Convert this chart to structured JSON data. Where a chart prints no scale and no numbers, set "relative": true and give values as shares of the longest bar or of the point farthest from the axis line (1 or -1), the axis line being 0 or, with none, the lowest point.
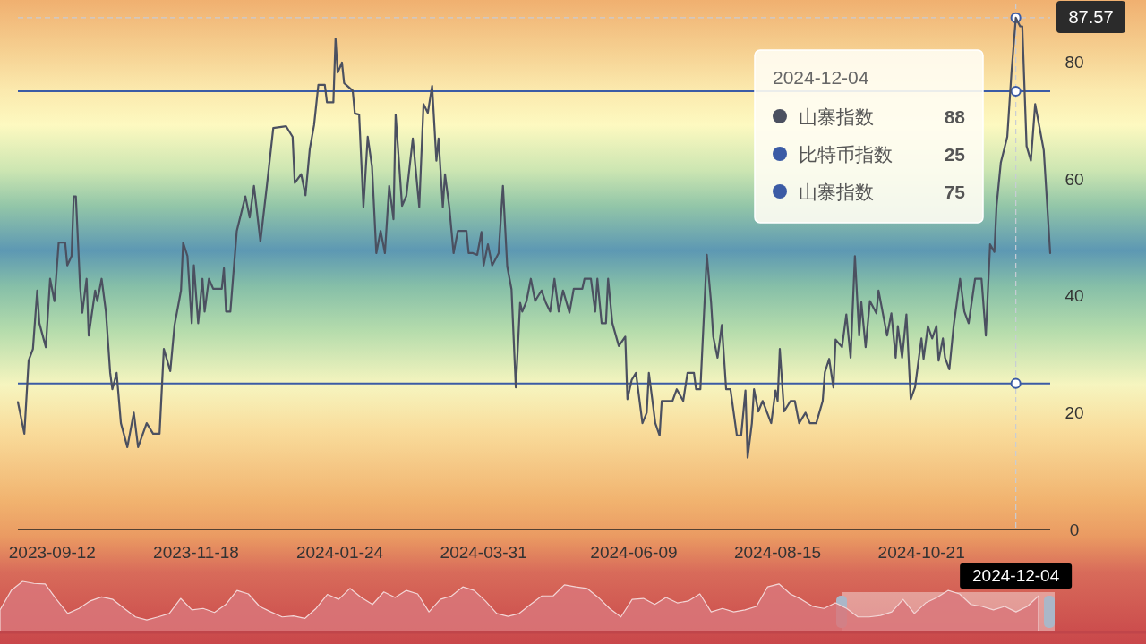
{
  "chart_data": [
    {
      "type": "line",
      "legend": "top right",
      "legend_title": "2024-12-04",
      "xlim": [
        "2023-08-27",
        "2024-12-20"
      ],
      "ylim": [
        0,
        90
      ],
      "yticks": [
        0,
        20,
        40,
        60,
        80
      ],
      "xticks": [
        "2023-09-12",
        "2023-11-18",
        "2024-01-24",
        "2024-03-31",
        "2024-06-09",
        "2024-08-15",
        "2024-10-21"
      ],
      "ref_lines": [
        {
          "axis": "y",
          "value": 25,
          "label": "比特币指数",
          "color": "#3b5ba5",
          "line_style": "solid"
        },
        {
          "axis": "y",
          "value": 75,
          "label": "山寨指数",
          "color": "#3b5ba5",
          "line_style": "solid"
        },
        {
          "axis": "y",
          "value": 87.57,
          "label": "87.57",
          "color": "#c8ccd6",
          "line_style": "dashed"
        },
        {
          "axis": "x",
          "value": "2024-12-04",
          "label": "2024-12-04",
          "color": "#c8ccd6",
          "line_style": "dashed"
        }
      ],
      "annotations": [
        "88",
        "25",
        "75"
      ],
      "x": [
        "2023-08-27",
        "2023-08-30",
        "2023-09-01",
        "2023-09-03",
        "2023-09-05",
        "2023-09-06",
        "2023-09-09",
        "2023-09-11",
        "2023-09-13",
        "2023-09-15",
        "2023-09-18",
        "2023-09-19",
        "2023-09-21",
        "2023-09-22",
        "2023-09-23",
        "2023-09-25",
        "2023-09-26",
        "2023-09-28",
        "2023-09-29",
        "2023-10-02",
        "2023-10-03",
        "2023-10-05",
        "2023-10-07",
        "2023-10-09",
        "2023-10-10",
        "2023-10-12",
        "2023-10-14",
        "2023-10-17",
        "2023-10-20",
        "2023-10-22",
        "2023-10-26",
        "2023-10-29",
        "2023-11-01",
        "2023-11-03",
        "2023-11-06",
        "2023-11-08",
        "2023-11-11",
        "2023-11-12",
        "2023-11-14",
        "2023-11-16",
        "2023-11-17",
        "2023-11-19",
        "2023-11-21",
        "2023-11-22",
        "2023-11-24",
        "2023-11-26",
        "2023-11-30",
        "2023-12-01",
        "2023-12-02",
        "2023-12-04",
        "2023-12-07",
        "2023-12-11",
        "2023-12-13",
        "2023-12-15",
        "2023-12-18",
        "2023-12-21",
        "2023-12-24",
        "2023-12-30",
        "2024-01-02",
        "2024-01-03",
        "2024-01-06",
        "2024-01-08",
        "2024-01-10",
        "2024-01-12",
        "2024-01-14",
        "2024-01-17",
        "2024-01-18",
        "2024-01-21",
        "2024-01-22",
        "2024-01-23",
        "2024-01-25",
        "2024-01-26",
        "2024-01-30",
        "2024-01-31",
        "2024-02-02",
        "2024-02-04",
        "2024-02-06",
        "2024-02-08",
        "2024-02-10",
        "2024-02-12",
        "2024-02-14",
        "2024-02-16",
        "2024-02-18",
        "2024-02-19",
        "2024-02-22",
        "2024-02-24",
        "2024-02-27",
        "2024-03-01",
        "2024-03-03",
        "2024-03-05",
        "2024-03-07",
        "2024-03-09",
        "2024-03-10",
        "2024-03-12",
        "2024-03-13",
        "2024-03-15",
        "2024-03-17",
        "2024-03-19",
        "2024-03-23",
        "2024-03-24",
        "2024-03-26",
        "2024-03-28",
        "2024-03-30",
        "2024-03-31",
        "2024-04-02",
        "2024-04-04",
        "2024-04-07",
        "2024-04-09",
        "2024-04-11",
        "2024-04-13",
        "2024-04-15",
        "2024-04-17",
        "2024-04-18",
        "2024-04-20",
        "2024-04-22",
        "2024-04-24",
        "2024-04-27",
        "2024-04-29",
        "2024-05-01",
        "2024-05-03",
        "2024-05-05",
        "2024-05-07",
        "2024-05-10",
        "2024-05-12",
        "2024-05-16",
        "2024-05-17",
        "2024-05-20",
        "2024-05-22",
        "2024-05-23",
        "2024-05-25",
        "2024-05-27",
        "2024-05-28",
        "2024-05-30",
        "2024-06-02",
        "2024-06-05",
        "2024-06-06",
        "2024-06-08",
        "2024-06-10",
        "2024-06-13",
        "2024-06-15",
        "2024-06-16",
        "2024-06-19",
        "2024-06-21",
        "2024-06-22",
        "2024-06-25",
        "2024-06-27",
        "2024-06-29",
        "2024-07-02",
        "2024-07-04",
        "2024-07-07",
        "2024-07-08",
        "2024-07-10",
        "2024-07-13",
        "2024-07-15",
        "2024-07-16",
        "2024-07-18",
        "2024-07-20",
        "2024-07-22",
        "2024-07-24",
        "2024-07-27",
        "2024-07-29",
        "2024-07-31",
        "2024-08-01",
        "2024-08-03",
        "2024-08-04",
        "2024-08-06",
        "2024-08-08",
        "2024-08-12",
        "2024-08-14",
        "2024-08-15",
        "2024-08-16",
        "2024-08-18",
        "2024-08-21",
        "2024-08-23",
        "2024-08-25",
        "2024-08-28",
        "2024-08-30",
        "2024-09-02",
        "2024-09-05",
        "2024-09-06",
        "2024-09-08",
        "2024-09-10",
        "2024-09-11",
        "2024-09-14",
        "2024-09-16",
        "2024-09-18",
        "2024-09-20",
        "2024-09-22",
        "2024-09-23",
        "2024-09-25",
        "2024-09-27",
        "2024-09-30",
        "2024-10-01",
        "2024-10-05",
        "2024-10-07",
        "2024-10-09",
        "2024-10-10",
        "2024-10-12",
        "2024-10-14",
        "2024-10-16",
        "2024-10-18",
        "2024-10-21",
        "2024-10-22",
        "2024-10-24",
        "2024-10-26",
        "2024-10-28",
        "2024-10-29",
        "2024-10-31",
        "2024-11-01",
        "2024-11-03",
        "2024-11-05",
        "2024-11-08",
        "2024-11-10",
        "2024-11-12",
        "2024-11-15",
        "2024-11-18",
        "2024-11-20",
        "2024-11-22",
        "2024-11-24",
        "2024-11-25",
        "2024-11-27",
        "2024-11-30",
        "2024-12-02",
        "2024-12-04",
        "2024-12-06",
        "2024-12-07",
        "2024-12-09",
        "2024-12-11",
        "2024-12-13",
        "2024-12-17",
        "2024-12-20"
      ],
      "series": [
        {
          "type": "scatter",
          "marker": "circle",
          "color": "#3b5ba5",
          "x": [
            "2024-12-04",
            "2024-12-04",
            "2024-12-04"
          ],
          "values": [
            87.57,
            75,
            25
          ]
        },
        {
          "name": "山寨指数",
          "color": "#4b5060",
          "values": [
            21.8,
            16.4,
            28.9,
            30.9,
            40.9,
            35.3,
            31.2,
            42.9,
            39.1,
            49.1,
            49.1,
            45.2,
            46.8,
            57.0,
            57.0,
            41.4,
            37.1,
            42.9,
            33.2,
            40.9,
            39.1,
            42.9,
            37.3,
            26.8,
            24.0,
            26.8,
            18.2,
            14.1,
            20.0,
            14.1,
            18.2,
            16.4,
            16.4,
            30.9,
            27.1,
            35.0,
            40.9,
            49.1,
            46.8,
            35.3,
            45.2,
            35.3,
            42.9,
            37.3,
            42.9,
            41.2,
            41.2,
            44.7,
            37.3,
            37.3,
            51.1,
            57.0,
            53.4,
            58.8,
            49.3,
            58.8,
            68.7,
            69.0,
            67.2,
            59.3,
            60.8,
            57.2,
            65.1,
            69.2,
            76.1,
            76.1,
            73.1,
            73.1,
            84.0,
            78.2,
            79.9,
            76.4,
            75.1,
            71.2,
            71.0,
            55.2,
            67.2,
            62.1,
            47.3,
            51.1,
            47.3,
            58.8,
            53.1,
            71.0,
            55.4,
            57.1,
            66.9,
            55.2,
            72.8,
            71.3,
            75.9,
            63.1,
            66.9,
            55.2,
            60.8,
            55.2,
            47.3,
            51.1,
            51.1,
            47.3,
            47.3,
            47.0,
            50.9,
            45.2,
            48.8,
            45.2,
            47.3,
            58.8,
            45.0,
            41.1,
            24.3,
            38.8,
            37.3,
            39.1,
            42.9,
            39.1,
            40.9,
            38.8,
            37.3,
            42.9,
            37.3,
            40.9,
            37.1,
            41.2,
            41.2,
            42.9,
            42.9,
            37.3,
            42.9,
            35.3,
            35.3,
            42.9,
            35.3,
            31.4,
            33.0,
            22.3,
            25.6,
            26.8,
            18.2,
            20.0,
            26.8,
            18.2,
            16.1,
            22.0,
            22.0,
            22.0,
            24.0,
            22.0,
            26.8,
            26.8,
            24.0,
            24.0,
            47.0,
            38.8,
            33.0,
            29.4,
            35.0,
            24.0,
            24.0,
            16.1,
            16.1,
            23.8,
            12.3,
            18.2,
            24.0,
            20.2,
            22.0,
            18.2,
            23.8,
            22.0,
            30.9,
            20.2,
            22.0,
            22.0,
            18.2,
            20.0,
            18.2,
            18.2,
            22.0,
            26.9,
            29.2,
            24.3,
            32.5,
            31.2,
            36.8,
            29.4,
            46.8,
            33.2,
            38.9,
            31.2,
            39.1,
            37.0,
            40.9,
            33.2,
            37.0,
            29.4,
            34.8,
            29.4,
            36.8,
            22.3,
            24.3,
            32.7,
            29.2,
            34.8,
            32.7,
            34.8,
            28.9,
            32.7,
            29.4,
            27.4,
            34.8,
            42.9,
            37.3,
            35.3,
            42.9,
            42.9,
            33.2,
            48.8,
            47.5,
            55.4,
            62.8,
            67.2,
            78.4,
            87.57,
            86.1,
            86.1,
            65.6,
            63.1,
            72.8,
            64.9,
            47.3
          ]
        }
      ]
    },
    {
      "type": "area",
      "relative": true,
      "color": "#d9777a",
      "categories": [
        null,
        null,
        null,
        null,
        null,
        null,
        null,
        null,
        null,
        null,
        null,
        null,
        null,
        null,
        null,
        null,
        null,
        null,
        null,
        null,
        null,
        null,
        null,
        null,
        null,
        null,
        null,
        null,
        null,
        null,
        null,
        null,
        null,
        null,
        null,
        null,
        null,
        null,
        null,
        null,
        null,
        null,
        null,
        null,
        null,
        null,
        null,
        null,
        null,
        null,
        null,
        null,
        null,
        null,
        null,
        null,
        null,
        null,
        null,
        null,
        null,
        null,
        null,
        null,
        null,
        null,
        null,
        null,
        null,
        null,
        null,
        null,
        null,
        null,
        null,
        null,
        null,
        null,
        null,
        null,
        null,
        null,
        null,
        null,
        null,
        null,
        null,
        null,
        null,
        null,
        null,
        null,
        null
      ],
      "values": [
        0.43,
        0.82,
        1,
        0.96,
        0.95,
        0.64,
        0.36,
        0.46,
        0.61,
        0.69,
        0.64,
        0.46,
        0.29,
        0.23,
        0.29,
        0.36,
        0.66,
        0.43,
        0.46,
        0.38,
        0.54,
        0.82,
        0.75,
        0.5,
        0.39,
        0.29,
        0.31,
        0.26,
        0.46,
        0.74,
        0.64,
        0.86,
        0.68,
        0.54,
        0.79,
        0.68,
        0.82,
        0.75,
        0.39,
        0.64,
        0.71,
        0.89,
        0.82,
        0.61,
        0.36,
        0.3,
        0.36,
        0.54,
        0.71,
        0.71,
        0.93,
        0.89,
        0.86,
        0.68,
        0.46,
        0.29,
        0.64,
        0.66,
        0.54,
        0.68,
        0.57,
        0.61,
        0.75,
        0.39,
        0.46,
        0.39,
        0.43,
        0.5,
        0.89,
        0.95,
        0.75,
        0.64,
        0.5,
        0.46,
        0.57,
        0.46,
        0.29,
        0.29,
        0.32,
        0.39,
        0.64,
        0.36,
        0.57,
        0.68,
        0.82,
        0.75,
        0.54,
        0.5,
        0.43,
        0.5,
        0.39,
        0.5,
        0.71
      ]
    }
  ]
}
